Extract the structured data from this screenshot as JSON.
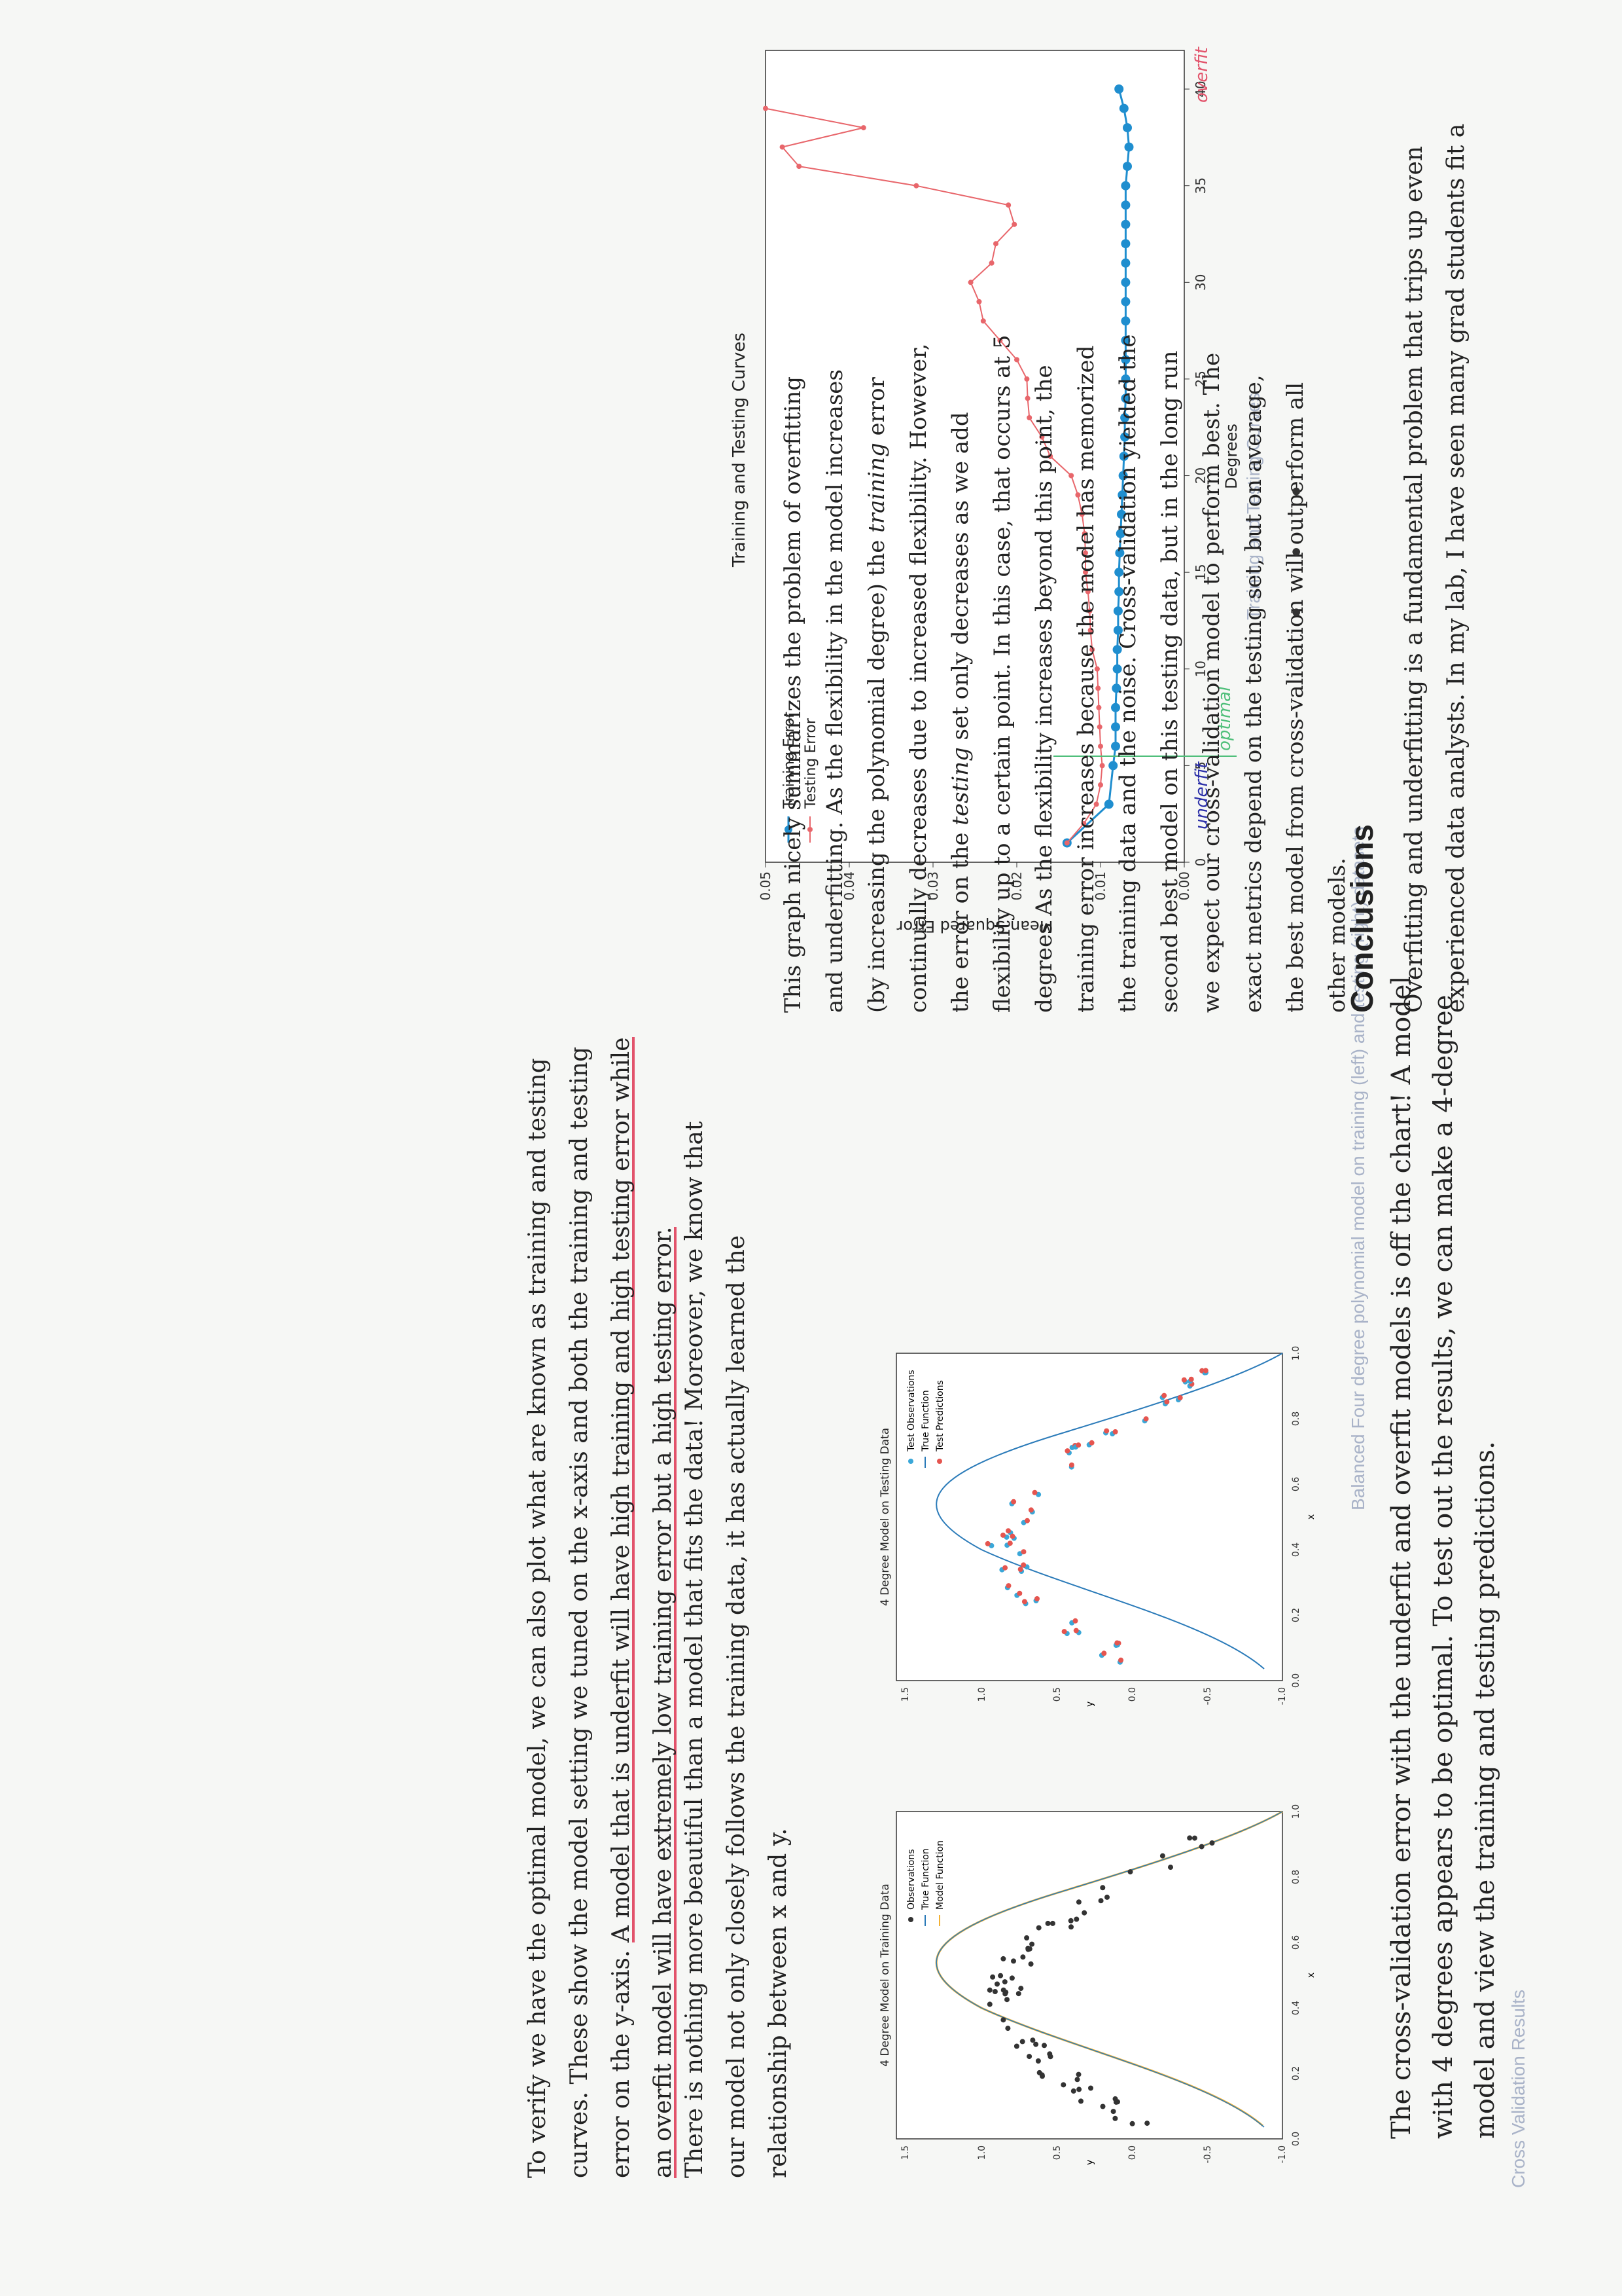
{
  "section_caption": "Cross Validation Results",
  "para1": "The cross-validation error with the underfit and overfit models is off the chart! A model with 4 degrees appears to be optimal. To test out the results, we can make a 4-degree model and view the training and testing predictions.",
  "figure_left": {
    "caption": "Balanced Four degree polynomial model on training (left) and testing (right) datasets",
    "training_title": "4 Degree Model on Training Data",
    "testing_title": "4 Degree Model on Testing Data",
    "xlabel": "x",
    "ylabel": "y",
    "training_legend": [
      "Observations",
      "True Function",
      "Model Function"
    ],
    "testing_legend": [
      "Test Observations",
      "True Function",
      "Test Predictions"
    ],
    "x_ticks": [
      "0.0",
      "0.2",
      "0.4",
      "0.6",
      "0.8",
      "1.0"
    ],
    "y_ticks": [
      "-1.0",
      "-0.5",
      "0.0",
      "0.5",
      "1.0",
      "1.5"
    ]
  },
  "para2": "There is nothing more beautiful than a model that fits the data! Moreover, we know that our model not only closely follows the training data, it has actually learned the relationship between x and y.",
  "para3": {
    "part1": "To verify we have the optimal model, we can also plot what are known as training and testing curves. These show the model setting we tuned on the x-axis and both the training and testing error on the y-axis. ",
    "part2": "A model that is underfit will have high training and high testing error while an overfit model will have extremely low training error but a high testing error."
  },
  "chart_caption": "Training and Testing Curves",
  "annotations": {
    "underfit": "underfit",
    "optimal": "optimal",
    "overfit": "overfit"
  },
  "para4": {
    "a": "This graph nicely summarizes the problem of overfitting and underfitting. As the flexibility in the model increases (by increasing the polynomial degree) the ",
    "b": "training",
    "c": " error continually decreases due to increased flexibility. However, the error on the ",
    "d": "testing",
    "e": " set only decreases as we add flexibility up to a certain point. In this case, that occurs at 5 degrees As the flexibility increases beyond this point, the training error increases because the model has memorized the training data and the noise. Cross-validation yielded the second best model on this testing data, but in the long run we expect our cross-validation model to perform best. The exact metrics depend on the testing set, but on average, the best model from cross-validation will outperform all other models."
  },
  "dots": "• • •",
  "conclusions_title": "Conclusions",
  "conclusions_text": "Overfitting and underfitting is a fundamental problem that trips up even experienced data analysts. In my lab, I have seen many grad students fit a",
  "chart_data": {
    "type": "line",
    "title": "Training and Testing Curves",
    "xlabel": "Degrees",
    "ylabel": "Mean Squared Error",
    "xlim": [
      0,
      42
    ],
    "ylim": [
      0,
      0.05
    ],
    "x_ticks": [
      0,
      5,
      10,
      15,
      20,
      25,
      30,
      35,
      40
    ],
    "y_ticks": [
      "0.00",
      "0.01",
      "0.02",
      "0.03",
      "0.04",
      "0.05"
    ],
    "legend_position": "top-left",
    "series": [
      {
        "name": "Training Error",
        "color": "#1f8ecf",
        "x": [
          1,
          3,
          5,
          6,
          7,
          8,
          9,
          10,
          11,
          12,
          13,
          14,
          15,
          16,
          17,
          18,
          19,
          20,
          21,
          22,
          23,
          24,
          25,
          26,
          27,
          28,
          29,
          30,
          31,
          32,
          33,
          34,
          35,
          36,
          37,
          38,
          39,
          40
        ],
        "y": [
          0.014,
          0.009,
          0.0085,
          0.0082,
          0.0082,
          0.0082,
          0.0081,
          0.008,
          0.008,
          0.0079,
          0.0079,
          0.0078,
          0.0078,
          0.0077,
          0.0076,
          0.0075,
          0.0074,
          0.0073,
          0.0072,
          0.0071,
          0.0071,
          0.007,
          0.007,
          0.007,
          0.007,
          0.007,
          0.007,
          0.007,
          0.007,
          0.007,
          0.007,
          0.007,
          0.007,
          0.0068,
          0.0066,
          0.0068,
          0.0072,
          0.0078
        ]
      },
      {
        "name": "Testing Error",
        "color": "#e8666b",
        "x": [
          1,
          2,
          3,
          4,
          5,
          6,
          7,
          8,
          9,
          10,
          11,
          12,
          13,
          14,
          15,
          16,
          17,
          18,
          19,
          20,
          21,
          22,
          23,
          24,
          25,
          26,
          27,
          28,
          29,
          30,
          31,
          32,
          33,
          34,
          35,
          36,
          37,
          38,
          39
        ],
        "y": [
          0.014,
          0.012,
          0.0105,
          0.01,
          0.0098,
          0.01,
          0.0101,
          0.0102,
          0.0103,
          0.0104,
          0.011,
          0.0112,
          0.0113,
          0.0115,
          0.0118,
          0.0118,
          0.0119,
          0.0122,
          0.0127,
          0.0135,
          0.016,
          0.017,
          0.0185,
          0.0187,
          0.0188,
          0.02,
          0.022,
          0.024,
          0.0245,
          0.0255,
          0.023,
          0.0225,
          0.0203,
          0.021,
          0.032,
          0.046,
          0.048,
          0.0383,
          0.051
        ]
      }
    ]
  }
}
